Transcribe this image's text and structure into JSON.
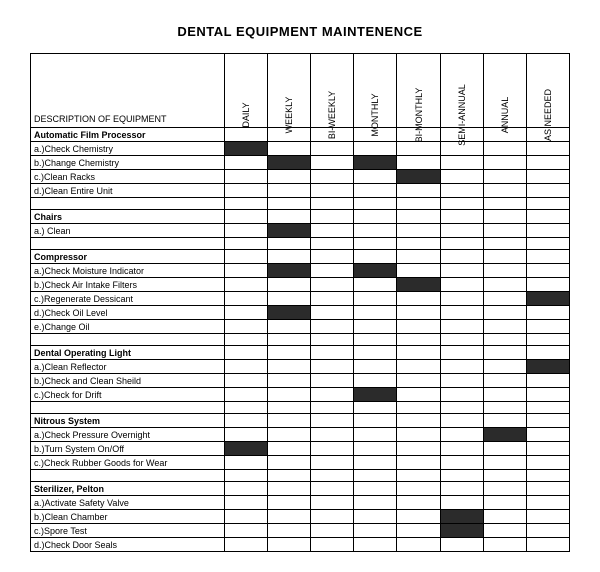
{
  "title": "DENTAL EQUIPMENT MAINTENENCE",
  "desc_header": "DESCRIPTION OF EQUIPMENT",
  "frequencies": [
    "DAILY",
    "WEEKLY",
    "BI-WEEKLY",
    "MONTHLY",
    "BI-MONTHLY",
    "SEMI-ANNUAL",
    "ANNUAL",
    "AS NEEDED"
  ],
  "rows": [
    {
      "type": "section",
      "label": "Automatic Film Processor"
    },
    {
      "type": "item",
      "label": "a.)Check Chemistry",
      "marks": [
        0
      ]
    },
    {
      "type": "item",
      "label": "b.)Change Chemistry",
      "marks": [
        1,
        3
      ]
    },
    {
      "type": "item",
      "label": "c.)Clean Racks",
      "marks": [
        4
      ]
    },
    {
      "type": "item",
      "label": "d.)Clean Entire Unit",
      "marks": []
    },
    {
      "type": "spacer"
    },
    {
      "type": "section",
      "label": "Chairs"
    },
    {
      "type": "item",
      "label": "a.) Clean",
      "marks": [
        1
      ]
    },
    {
      "type": "spacer"
    },
    {
      "type": "section",
      "label": "Compressor"
    },
    {
      "type": "item",
      "label": "a.)Check Moisture Indicator",
      "marks": [
        1,
        3
      ]
    },
    {
      "type": "item",
      "label": "b.)Check Air Intake Filters",
      "marks": [
        4
      ]
    },
    {
      "type": "item",
      "label": "c.)Regenerate Dessicant",
      "marks": [
        7
      ]
    },
    {
      "type": "item",
      "label": "d.)Check Oil Level",
      "marks": [
        1
      ]
    },
    {
      "type": "item",
      "label": "e.)Change Oil",
      "marks": []
    },
    {
      "type": "spacer"
    },
    {
      "type": "section",
      "label": "Dental Operating Light"
    },
    {
      "type": "item",
      "label": "a.)Clean Reflector",
      "marks": [
        7
      ]
    },
    {
      "type": "item",
      "label": "b.)Check and Clean Sheild",
      "marks": []
    },
    {
      "type": "item",
      "label": "c.)Check for Drift",
      "marks": [
        3
      ]
    },
    {
      "type": "spacer"
    },
    {
      "type": "section",
      "label": "Nitrous System"
    },
    {
      "type": "item",
      "label": "a.)Check Pressure Overnight",
      "marks": [
        6
      ]
    },
    {
      "type": "item",
      "label": "b.)Turn System On/Off",
      "marks": [
        0
      ]
    },
    {
      "type": "item",
      "label": "c.)Check Rubber Goods for Wear",
      "marks": []
    },
    {
      "type": "spacer"
    },
    {
      "type": "section",
      "label": "Sterilizer, Pelton"
    },
    {
      "type": "item",
      "label": "a.)Activate Safety Valve",
      "marks": []
    },
    {
      "type": "item",
      "label": "b.)Clean Chamber",
      "marks": [
        5
      ]
    },
    {
      "type": "item",
      "label": "c.)Spore Test",
      "marks": [
        5
      ]
    },
    {
      "type": "item",
      "label": "d.)Check Door Seals",
      "marks": []
    }
  ],
  "colors": {
    "fill": "#2b2b2b",
    "border": "#000000",
    "background": "#ffffff"
  }
}
